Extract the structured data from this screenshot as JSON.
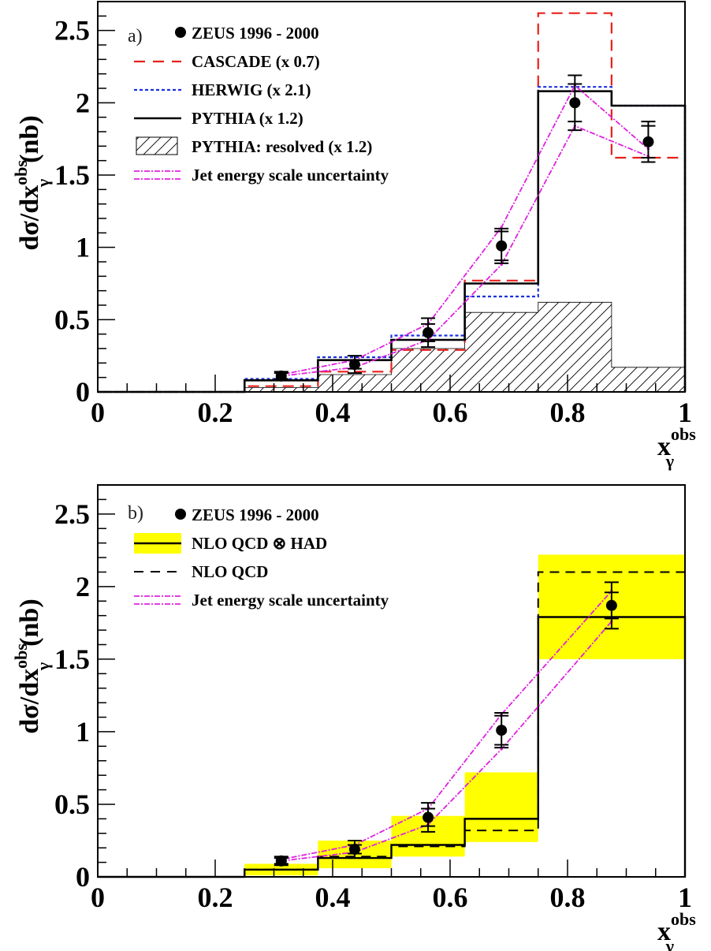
{
  "chart_data": [
    {
      "type": "line",
      "panel_tag": "a)",
      "ylabel": {
        "base": "dσ/dx",
        "sub": "γ",
        "sup": "obs",
        "unit": "(nb)"
      },
      "xlabel": {
        "base": "x",
        "sub": "γ",
        "sup": "obs"
      },
      "xlim": [
        0,
        1
      ],
      "ylim": [
        0,
        2.7
      ],
      "xticks": [
        "0",
        "0.2",
        "0.4",
        "0.6",
        "0.8",
        "1"
      ],
      "yticks": [
        "0",
        "0.5",
        "1",
        "1.5",
        "2",
        "2.5"
      ],
      "bin_edges": [
        0.25,
        0.375,
        0.5,
        0.625,
        0.75,
        0.875,
        1.0
      ],
      "legend": [
        {
          "label": "ZEUS 1996 - 2000",
          "style": "data"
        },
        {
          "label": "CASCADE (x 0.7)",
          "style": "red-dashed"
        },
        {
          "label": "HERWIG (x 2.1)",
          "style": "blue-dotted"
        },
        {
          "label": "PYTHIA (x 1.2)",
          "style": "black-solid"
        },
        {
          "label": "PYTHIA: resolved (x 1.2)",
          "style": "hatched"
        },
        {
          "label": "Jet energy scale uncertainty",
          "style": "magenta-dashdot"
        }
      ],
      "data_points": {
        "x": [
          0.3125,
          0.4375,
          0.5625,
          0.6875,
          0.8125,
          0.9375
        ],
        "y": [
          0.11,
          0.19,
          0.41,
          1.01,
          2.0,
          1.73
        ],
        "err_inner": [
          0.02,
          0.03,
          0.06,
          0.1,
          0.13,
          0.11
        ],
        "err_outer": [
          0.03,
          0.06,
          0.1,
          0.12,
          0.19,
          0.14
        ]
      },
      "histograms": [
        {
          "name": "CASCADE (x 0.7)",
          "color": "#e8201c",
          "dash": "dashed",
          "values": [
            0.04,
            0.14,
            0.29,
            0.77,
            2.62,
            1.62
          ]
        },
        {
          "name": "HERWIG (x 2.1)",
          "color": "#1a2fe0",
          "dash": "dotted",
          "values": [
            0.09,
            0.24,
            0.39,
            0.66,
            2.11,
            1.98
          ]
        },
        {
          "name": "PYTHIA (x 1.2)",
          "color": "#000000",
          "dash": "solid",
          "values": [
            0.08,
            0.22,
            0.36,
            0.75,
            2.08,
            1.98
          ]
        }
      ],
      "hatched_resolved": {
        "values": [
          0.03,
          0.12,
          0.3,
          0.55,
          0.62,
          0.17
        ],
        "top_left": [
          0.03,
          0.12,
          0.3,
          0.55,
          0.62,
          0.17
        ]
      },
      "jes_bands": {
        "x": [
          0.3125,
          0.4375,
          0.5625,
          0.6875,
          0.8125,
          0.9375
        ],
        "upper": [
          0.12,
          0.22,
          0.47,
          1.14,
          2.12,
          1.68
        ],
        "lower": [
          0.11,
          0.17,
          0.36,
          0.88,
          1.84,
          1.63
        ]
      }
    },
    {
      "type": "line",
      "panel_tag": "b)",
      "ylabel": {
        "base": "dσ/dx",
        "sub": "γ",
        "sup": "obs",
        "unit": "(nb)"
      },
      "xlabel": {
        "base": "x",
        "sub": "γ",
        "sup": "obs"
      },
      "xlim": [
        0,
        1
      ],
      "ylim": [
        0,
        2.7
      ],
      "xticks": [
        "0",
        "0.2",
        "0.4",
        "0.6",
        "0.8",
        "1"
      ],
      "yticks": [
        "0",
        "0.5",
        "1",
        "1.5",
        "2",
        "2.5"
      ],
      "bin_edges": [
        0.25,
        0.375,
        0.5,
        0.625,
        0.75,
        1.0
      ],
      "legend": [
        {
          "label": "ZEUS 1996 - 2000",
          "style": "data"
        },
        {
          "label": "NLO QCD ⊗ HAD",
          "style": "yellow-band-solid"
        },
        {
          "label": "NLO QCD",
          "style": "black-dashed"
        },
        {
          "label": "Jet energy scale uncertainty",
          "style": "magenta-dashdot"
        }
      ],
      "data_points": {
        "x": [
          0.3125,
          0.4375,
          0.5625,
          0.6875,
          0.875
        ],
        "y": [
          0.11,
          0.19,
          0.41,
          1.01,
          1.87
        ],
        "err_inner": [
          0.02,
          0.03,
          0.06,
          0.1,
          0.09
        ],
        "err_outer": [
          0.03,
          0.06,
          0.1,
          0.12,
          0.16
        ]
      },
      "nlo_had": {
        "values": [
          0.05,
          0.13,
          0.22,
          0.4,
          1.79
        ],
        "band_low": [
          0.01,
          0.06,
          0.14,
          0.24,
          1.5
        ],
        "band_high": [
          0.09,
          0.25,
          0.42,
          0.72,
          2.22
        ]
      },
      "nlo": {
        "values": [
          0.05,
          0.14,
          0.21,
          0.32,
          2.1
        ]
      },
      "jes_bands": {
        "x": [
          0.3125,
          0.4375,
          0.5625,
          0.6875,
          0.875
        ],
        "upper": [
          0.12,
          0.22,
          0.47,
          1.12,
          1.97
        ],
        "lower": [
          0.11,
          0.17,
          0.36,
          0.88,
          1.76
        ]
      }
    }
  ]
}
